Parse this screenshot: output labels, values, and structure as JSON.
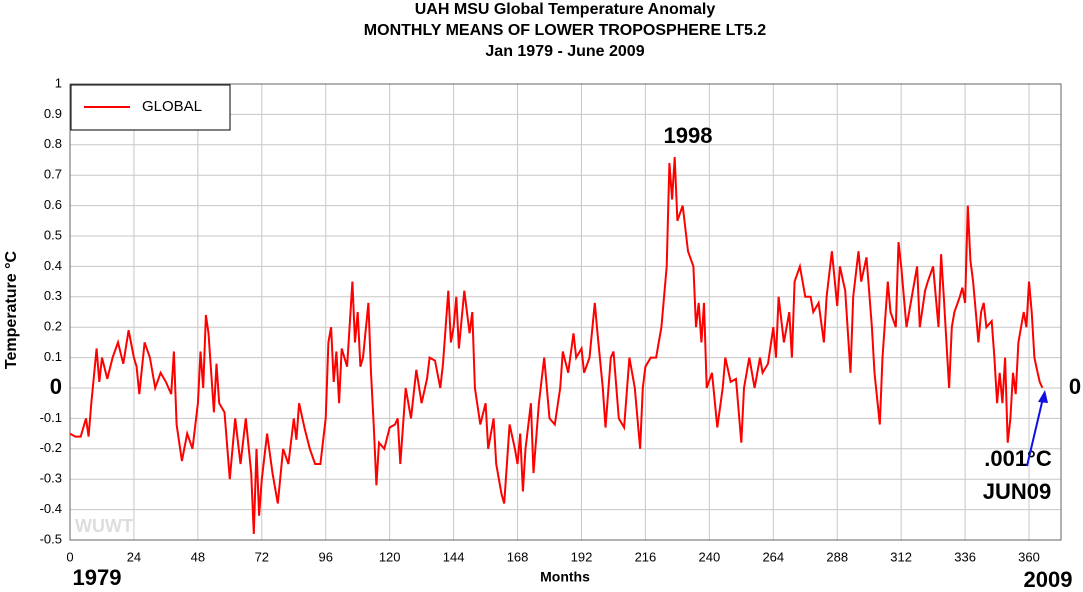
{
  "chart_data": {
    "type": "line",
    "title": "UAH MSU Global Temperature Anomaly",
    "subtitle": [
      "MONTHLY MEANS OF LOWER TROPOSPHERE LT5.2",
      "Jan 1979 - June 2009"
    ],
    "x_label": "Months",
    "y_label": "Temperature °C",
    "xlim": [
      0,
      372
    ],
    "ylim": [
      -0.5,
      1
    ],
    "xticks": [
      0,
      24,
      48,
      72,
      96,
      120,
      144,
      168,
      192,
      216,
      240,
      264,
      288,
      312,
      336,
      360
    ],
    "yticks": [
      -0.5,
      -0.4,
      -0.3,
      -0.2,
      -0.1,
      0,
      0.1,
      0.2,
      0.3,
      0.4,
      0.5,
      0.6,
      0.7,
      0.8,
      0.9,
      1
    ],
    "grid": true,
    "legend": "upper left",
    "annotations": [
      "1998",
      "0",
      ".001°C",
      "JUN09",
      "1979",
      "2009",
      "WUWT"
    ],
    "series": [
      {
        "name": "GLOBAL",
        "color": "#ff0000",
        "x": [
          0,
          2,
          4,
          6,
          7,
          8,
          10,
          11,
          12,
          14,
          16,
          18,
          20,
          22,
          24,
          25,
          26,
          28,
          30,
          32,
          34,
          36,
          38,
          39,
          40,
          42,
          44,
          46,
          48,
          49,
          50,
          51,
          52,
          54,
          55,
          56,
          58,
          60,
          62,
          64,
          66,
          68,
          69,
          70,
          71,
          72,
          74,
          76,
          78,
          80,
          82,
          84,
          85,
          86,
          88,
          90,
          92,
          94,
          96,
          97,
          98,
          99,
          100,
          101,
          102,
          104,
          106,
          107,
          108,
          109,
          110,
          112,
          113,
          114,
          115,
          116,
          118,
          120,
          122,
          123,
          124,
          126,
          128,
          130,
          132,
          134,
          135,
          137,
          139,
          140,
          142,
          143,
          144,
          145,
          146,
          148,
          150,
          151,
          152,
          154,
          156,
          157,
          159,
          160,
          162,
          163,
          165,
          167,
          168,
          169,
          170,
          171,
          173,
          174,
          176,
          178,
          180,
          182,
          184,
          185,
          187,
          189,
          190,
          192,
          193,
          195,
          197,
          198,
          200,
          201,
          203,
          204,
          206,
          208,
          210,
          212,
          214,
          215,
          216,
          218,
          220,
          222,
          224,
          225,
          226,
          227,
          228,
          230,
          232,
          234,
          235,
          236,
          237,
          238,
          239,
          241,
          243,
          245,
          246,
          248,
          250,
          252,
          253,
          255,
          257,
          259,
          260,
          262,
          264,
          265,
          266,
          268,
          270,
          271,
          272,
          274,
          276,
          278,
          279,
          281,
          283,
          284,
          286,
          288,
          289,
          291,
          293,
          294,
          296,
          297,
          299,
          301,
          302,
          304,
          305,
          307,
          308,
          310,
          311,
          312,
          314,
          316,
          318,
          319,
          321,
          322,
          324,
          326,
          327,
          328,
          330,
          331,
          332,
          334,
          335,
          336,
          337,
          338,
          339,
          340,
          341,
          342,
          343,
          344,
          346,
          347,
          348,
          349,
          350,
          351,
          352,
          353,
          354,
          355,
          356,
          358,
          359,
          360,
          361,
          362,
          363,
          364,
          365
        ],
        "values": [
          -0.15,
          -0.16,
          -0.16,
          -0.1,
          -0.16,
          -0.05,
          0.13,
          0.02,
          0.1,
          0.03,
          0.1,
          0.15,
          0.08,
          0.19,
          0.1,
          0.07,
          -0.02,
          0.15,
          0.1,
          0,
          0.05,
          0.02,
          -0.02,
          0.12,
          -0.12,
          -0.24,
          -0.15,
          -0.2,
          -0.05,
          0.12,
          0,
          0.24,
          0.18,
          -0.08,
          0.08,
          -0.05,
          -0.08,
          -0.3,
          -0.1,
          -0.25,
          -0.1,
          -0.28,
          -0.48,
          -0.2,
          -0.42,
          -0.3,
          -0.15,
          -0.28,
          -0.38,
          -0.2,
          -0.25,
          -0.1,
          -0.17,
          -0.05,
          -0.13,
          -0.2,
          -0.25,
          -0.25,
          -0.1,
          0.15,
          0.2,
          0.02,
          0.12,
          -0.05,
          0.13,
          0.07,
          0.35,
          0.15,
          0.25,
          0.07,
          0.1,
          0.28,
          0.05,
          -0.12,
          -0.32,
          -0.18,
          -0.2,
          -0.13,
          -0.12,
          -0.1,
          -0.25,
          0,
          -0.1,
          0.06,
          -0.05,
          0.03,
          0.1,
          0.09,
          0,
          0.08,
          0.32,
          0.15,
          0.2,
          0.3,
          0.13,
          0.32,
          0.18,
          0.25,
          0,
          -0.12,
          -0.05,
          -0.2,
          -0.1,
          -0.25,
          -0.35,
          -0.38,
          -0.12,
          -0.2,
          -0.25,
          -0.15,
          -0.34,
          -0.2,
          -0.05,
          -0.28,
          -0.05,
          0.1,
          -0.1,
          -0.12,
          0,
          0.12,
          0.05,
          0.18,
          0.1,
          0.13,
          0.05,
          0.1,
          0.28,
          0.18,
          0,
          -0.13,
          0.1,
          0.12,
          -0.1,
          -0.13,
          0.1,
          0,
          -0.2,
          0,
          0.07,
          0.1,
          0.1,
          0.2,
          0.4,
          0.74,
          0.62,
          0.76,
          0.55,
          0.6,
          0.45,
          0.4,
          0.2,
          0.28,
          0.15,
          0.28,
          0,
          0.05,
          -0.13,
          0,
          0.1,
          0.02,
          0.03,
          -0.18,
          0,
          0.1,
          0,
          0.1,
          0.05,
          0.08,
          0.2,
          0.1,
          0.3,
          0.15,
          0.25,
          0.1,
          0.35,
          0.4,
          0.3,
          0.3,
          0.25,
          0.28,
          0.15,
          0.3,
          0.45,
          0.27,
          0.4,
          0.32,
          0.05,
          0.3,
          0.45,
          0.35,
          0.43,
          0.2,
          0.05,
          -0.12,
          0.1,
          0.35,
          0.25,
          0.2,
          0.48,
          0.4,
          0.2,
          0.3,
          0.4,
          0.2,
          0.32,
          0.35,
          0.4,
          0.2,
          0.44,
          0.3,
          0,
          0.2,
          0.25,
          0.3,
          0.33,
          0.28,
          0.6,
          0.42,
          0.35,
          0.25,
          0.15,
          0.25,
          0.28,
          0.2,
          0.22,
          0.1,
          -0.05,
          0.05,
          -0.05,
          0.1,
          -0.18,
          -0.1,
          0.05,
          -0.02,
          0.15,
          0.25,
          0.2,
          0.35,
          0.25,
          0.1,
          0.06,
          0.02,
          0.001
        ]
      }
    ]
  }
}
